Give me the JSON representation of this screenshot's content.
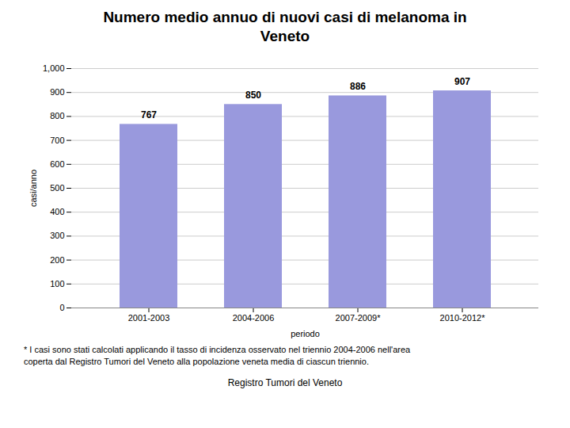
{
  "chart_data": {
    "type": "bar",
    "title": "Numero medio annuo di nuovi casi di melanoma in\nVeneto",
    "categories": [
      "2001-2003",
      "2004-2006",
      "2007-2009*",
      "2010-2012*"
    ],
    "values": [
      767,
      850,
      886,
      907
    ],
    "color": "#9999DD",
    "xlabel": "periodo",
    "ylabel": "casi/anno",
    "ylim": [
      0,
      1000
    ],
    "yticks": [
      0,
      100,
      200,
      300,
      400,
      500,
      600,
      700,
      800,
      900,
      1000
    ],
    "grid": true,
    "data_labels": true,
    "annotations": [
      "* I casi sono stati calcolati applicando il tasso di incidenza osservato nel triennio 2004-2006 nell'area",
      "coperta dal Registro Tumori del Veneto alla popolazione veneta media di ciascun triennio.",
      "Registro Tumori del Veneto"
    ]
  }
}
